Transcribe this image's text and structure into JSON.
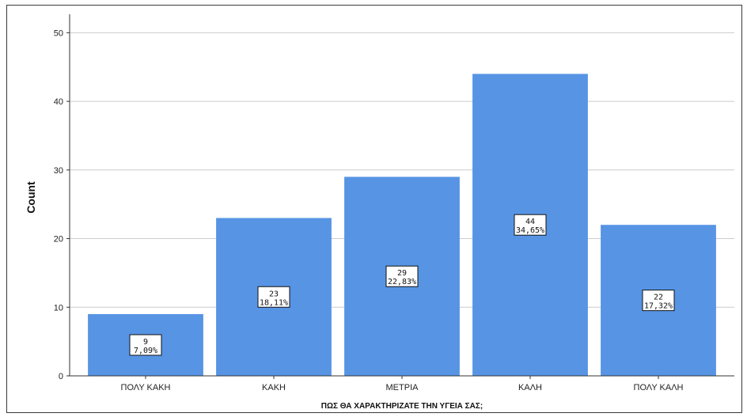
{
  "chart_data": {
    "type": "bar",
    "title": "",
    "xlabel": "ΠΩΣ ΘΑ ΧΑΡΑΚΤΗΡΙΖΑΤΕ ΤΗΝ ΥΓΕΙΑ ΣΑΣ;",
    "ylabel": "Count",
    "categories": [
      "ΠΟΛΥ ΚΑΚΗ",
      "ΚΑΚΗ",
      "ΜΕΤΡΙΑ",
      "ΚΑΛΗ",
      "ΠΟΛΥ ΚΑΛΗ"
    ],
    "values": [
      9,
      23,
      29,
      44,
      22
    ],
    "percent_labels": [
      "7,09%",
      "18,11%",
      "22,83%",
      "34,65%",
      "17,32%"
    ],
    "ylim": [
      0,
      52
    ],
    "yticks": [
      0,
      10,
      20,
      30,
      40,
      50
    ],
    "grid": true,
    "bar_color": "#5794e4",
    "grid_color": "#cccccc"
  }
}
